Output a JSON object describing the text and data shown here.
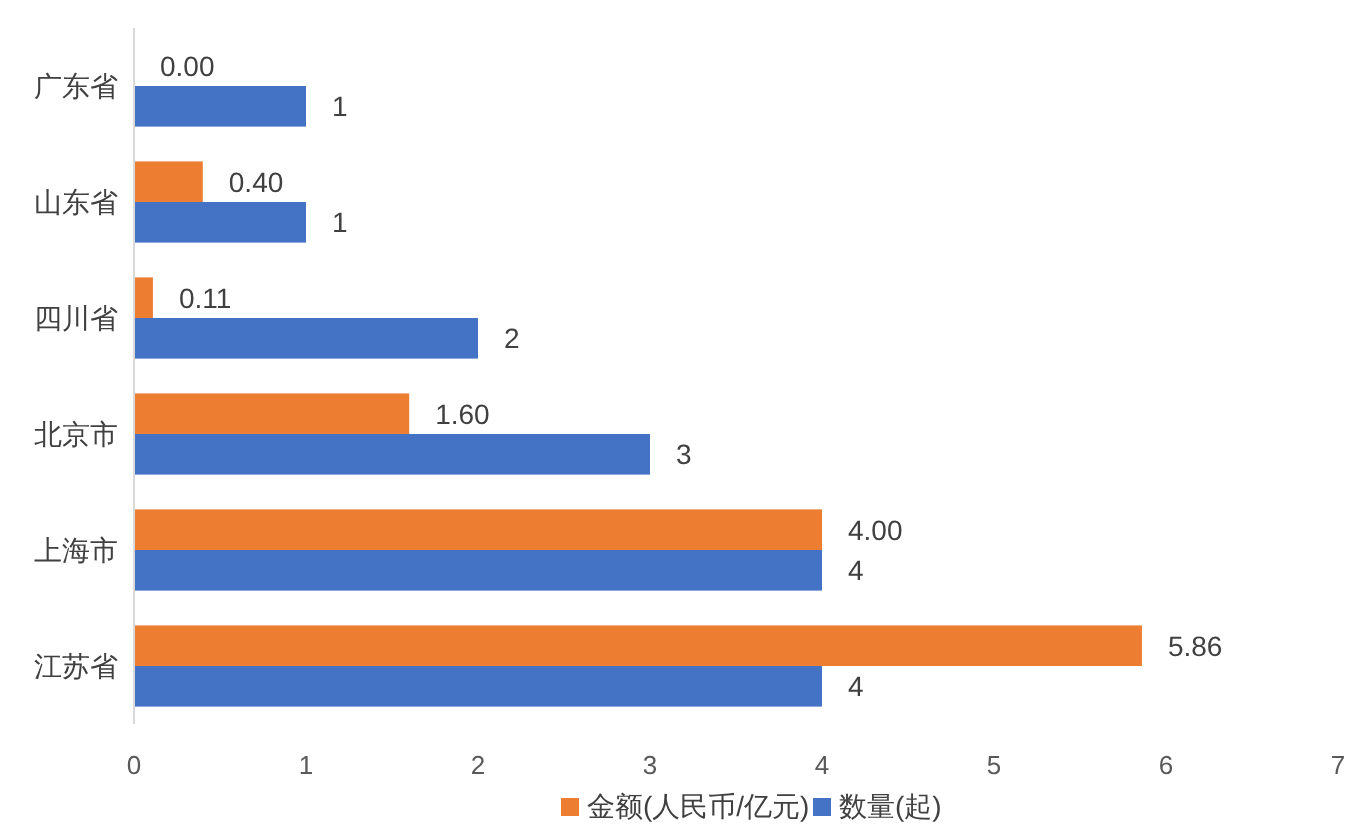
{
  "chart_data": {
    "type": "bar",
    "orientation": "horizontal",
    "categories": [
      "广东省",
      "山东省",
      "四川省",
      "北京市",
      "上海市",
      "江苏省"
    ],
    "series": [
      {
        "name": "金额(人民币/亿元)",
        "color": "#ed7d31",
        "values": [
          0.0,
          0.4,
          0.11,
          1.6,
          4.0,
          5.86
        ],
        "value_labels": [
          "0.00",
          "0.40",
          "0.11",
          "1.60",
          "4.00",
          "5.86"
        ]
      },
      {
        "name": "数量(起)",
        "color": "#4472c4",
        "values": [
          1,
          1,
          2,
          3,
          4,
          4
        ],
        "value_labels": [
          "1",
          "1",
          "2",
          "3",
          "4",
          "4"
        ]
      }
    ],
    "xlim": [
      0,
      7
    ],
    "xticks": [
      0,
      1,
      2,
      3,
      4,
      5,
      6,
      7
    ],
    "legend": "bottom",
    "grid": false
  }
}
